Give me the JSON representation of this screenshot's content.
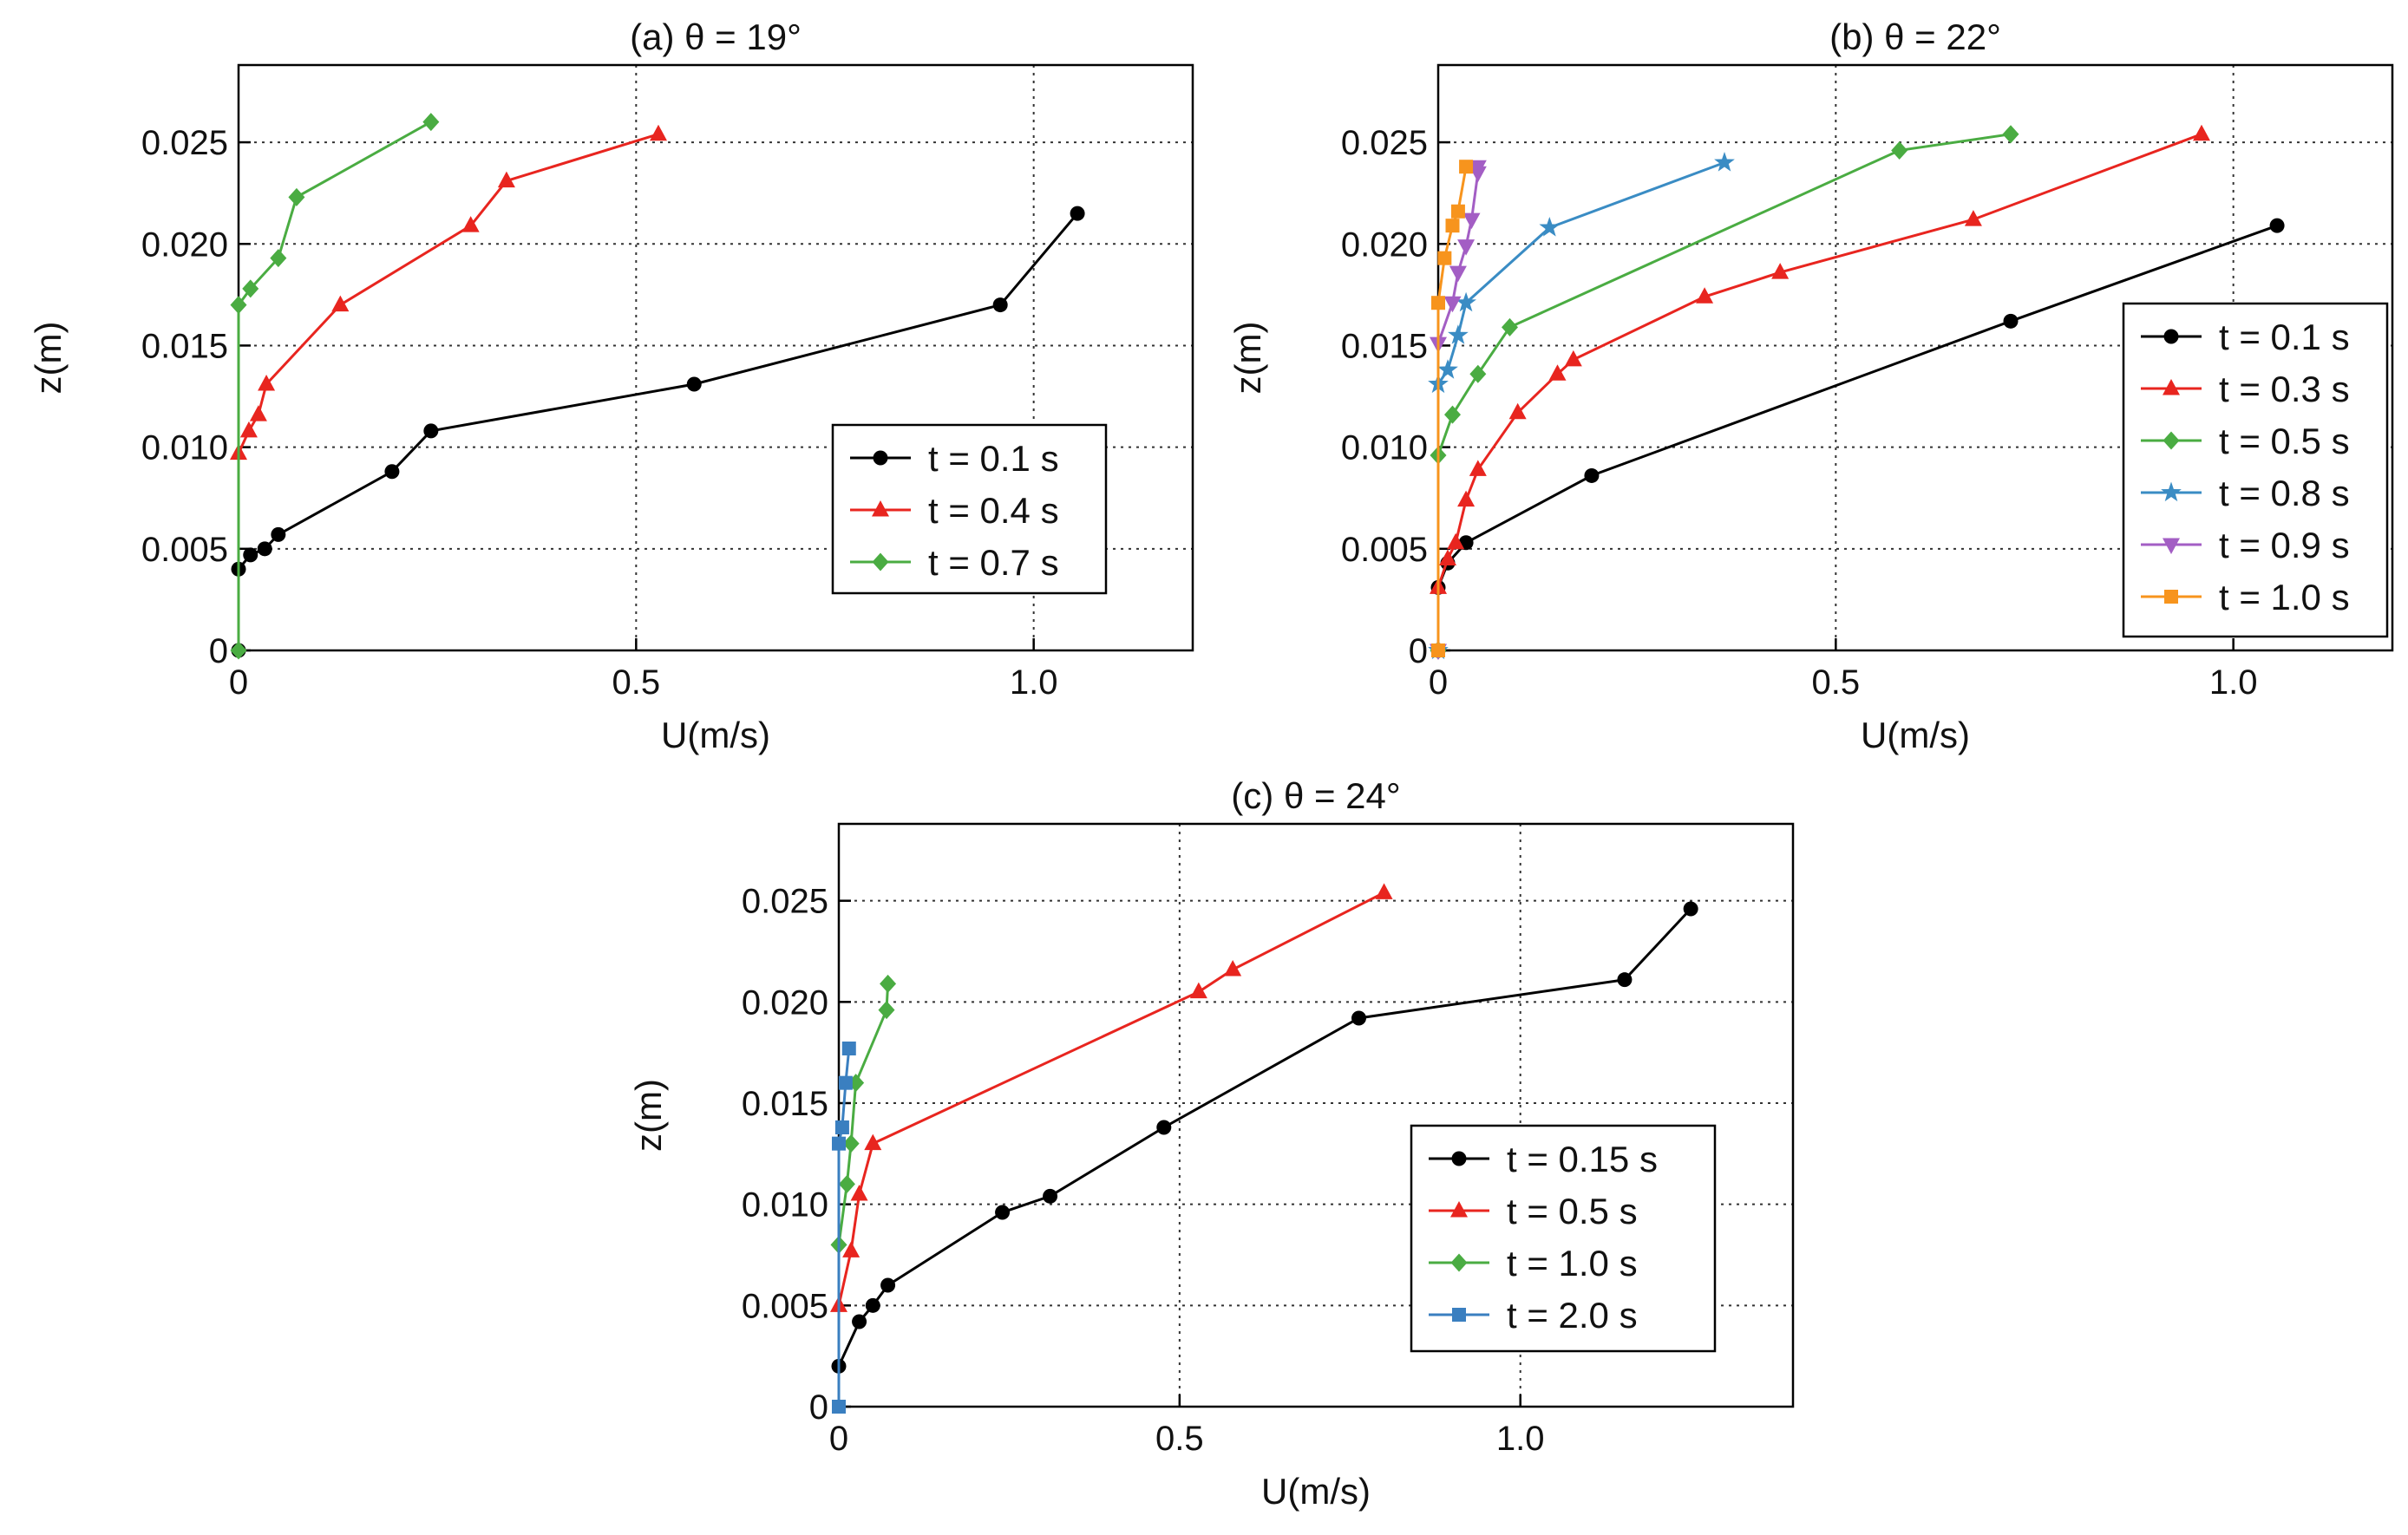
{
  "chart_data": [
    {
      "type": "line",
      "title": "(a) θ = 19°",
      "xlabel": "U(m/s)",
      "ylabel": "z(m)",
      "xlim": [
        0,
        1.2
      ],
      "ylim": [
        0,
        0.0288
      ],
      "grid": true,
      "legend_position": "center-right",
      "xticks": [
        0,
        0.5,
        1.0
      ],
      "xtick_labels": [
        "0",
        "0.5",
        "1.0"
      ],
      "yticks": [
        0,
        0.005,
        0.01,
        0.015,
        0.02,
        0.025
      ],
      "ytick_labels": [
        "0",
        "0.005",
        "0.010",
        "0.015",
        "0.020",
        "0.025"
      ],
      "series": [
        {
          "name": "t = 0.1 s",
          "color": "#000000",
          "marker": "circle",
          "x": [
            0,
            0.0,
            0.015,
            0.033,
            0.05,
            0.193,
            0.242,
            0.573,
            0.958,
            1.055
          ],
          "y": [
            0,
            0.004,
            0.0047,
            0.005,
            0.0057,
            0.0088,
            0.0108,
            0.0131,
            0.017,
            0.0215
          ]
        },
        {
          "name": "t = 0.4 s",
          "color": "#e8251f",
          "marker": "triangle",
          "x": [
            0.0,
            0.013,
            0.025,
            0.035,
            0.128,
            0.292,
            0.337,
            0.528
          ],
          "y": [
            0.0097,
            0.0108,
            0.0116,
            0.0131,
            0.017,
            0.0209,
            0.0231,
            0.0254
          ]
        },
        {
          "name": "t = 0.7 s",
          "color": "#4aac42",
          "marker": "diamond",
          "x": [
            0,
            0.0,
            0.015,
            0.05,
            0.073,
            0.242
          ],
          "y": [
            0,
            0.017,
            0.0178,
            0.0193,
            0.0223,
            0.026
          ]
        }
      ]
    },
    {
      "type": "line",
      "title": "(b) θ = 22°",
      "xlabel": "U(m/s)",
      "ylabel": "z(m)",
      "xlim": [
        0,
        1.2
      ],
      "ylim": [
        0,
        0.0288
      ],
      "grid": true,
      "legend_position": "right",
      "xticks": [
        0,
        0.5,
        1.0
      ],
      "xtick_labels": [
        "0",
        "0.5",
        "1.0"
      ],
      "yticks": [
        0,
        0.005,
        0.01,
        0.015,
        0.02,
        0.025
      ],
      "ytick_labels": [
        "0",
        "0.005",
        "0.010",
        "0.015",
        "0.020",
        "0.025"
      ],
      "series": [
        {
          "name": "t = 0.1 s",
          "color": "#000000",
          "marker": "circle",
          "x": [
            0,
            0.0,
            0.012,
            0.035,
            0.193,
            0.72,
            1.055
          ],
          "y": [
            0,
            0.0031,
            0.0043,
            0.0053,
            0.0086,
            0.0162,
            0.0209
          ]
        },
        {
          "name": "t = 0.3 s",
          "color": "#e8251f",
          "marker": "triangle",
          "x": [
            0.0,
            0.012,
            0.022,
            0.035,
            0.05,
            0.1,
            0.15,
            0.17,
            0.335,
            0.43,
            0.673,
            0.96
          ],
          "y": [
            0.0031,
            0.0045,
            0.0053,
            0.0074,
            0.0089,
            0.0117,
            0.0136,
            0.0143,
            0.0174,
            0.0186,
            0.0212,
            0.0254
          ]
        },
        {
          "name": "t = 0.5 s",
          "color": "#4aac42",
          "marker": "diamond",
          "x": [
            0,
            0.0,
            0.018,
            0.05,
            0.09,
            0.58,
            0.72
          ],
          "y": [
            0,
            0.0096,
            0.0116,
            0.0136,
            0.0159,
            0.0246,
            0.0254
          ]
        },
        {
          "name": "t = 0.8 s",
          "color": "#3a8cc4",
          "marker": "star",
          "x": [
            0,
            0.0,
            0.012,
            0.025,
            0.035,
            0.14,
            0.36
          ],
          "y": [
            0,
            0.0131,
            0.0138,
            0.0155,
            0.0171,
            0.0208,
            0.024
          ]
        },
        {
          "name": "t = 0.9 s",
          "color": "#a35ec4",
          "marker": "triangle-down",
          "x": [
            0,
            0.0,
            0.018,
            0.025,
            0.035,
            0.042,
            0.05,
            0.05
          ],
          "y": [
            0,
            0.0151,
            0.0171,
            0.0186,
            0.0199,
            0.0212,
            0.0235,
            0.0238
          ]
        },
        {
          "name": "t = 1.0 s",
          "color": "#f7941d",
          "marker": "square",
          "x": [
            0,
            0.0,
            0.008,
            0.018,
            0.025,
            0.035
          ],
          "y": [
            0,
            0.0171,
            0.0193,
            0.0209,
            0.0216,
            0.0238
          ]
        }
      ]
    },
    {
      "type": "line",
      "title": "(c) θ = 24°",
      "xlabel": "U(m/s)",
      "ylabel": "z(m)",
      "xlim": [
        0,
        1.4
      ],
      "ylim": [
        0,
        0.0288
      ],
      "grid": true,
      "legend_position": "bottom-right",
      "xticks": [
        0,
        0.5,
        1.0
      ],
      "xtick_labels": [
        "0",
        "0.5",
        "1.0"
      ],
      "yticks": [
        0,
        0.005,
        0.01,
        0.015,
        0.02,
        0.025
      ],
      "ytick_labels": [
        "0",
        "0.005",
        "0.010",
        "0.015",
        "0.020",
        "0.025"
      ],
      "series": [
        {
          "name": "t = 0.15 s",
          "color": "#000000",
          "marker": "circle",
          "x": [
            0.0,
            0.03,
            0.05,
            0.072,
            0.24,
            0.31,
            0.477,
            0.763,
            1.153,
            1.25
          ],
          "y": [
            0.002,
            0.0042,
            0.005,
            0.006,
            0.0096,
            0.0104,
            0.0138,
            0.0192,
            0.0211,
            0.0246
          ]
        },
        {
          "name": "t = 0.5 s",
          "color": "#e8251f",
          "marker": "triangle",
          "x": [
            0.0,
            0.018,
            0.03,
            0.05,
            0.528,
            0.578,
            0.8
          ],
          "y": [
            0.005,
            0.0077,
            0.0105,
            0.013,
            0.0205,
            0.0216,
            0.0254
          ]
        },
        {
          "name": "t = 1.0 s",
          "color": "#4aac42",
          "marker": "diamond",
          "x": [
            0.0,
            0.012,
            0.018,
            0.025,
            0.07,
            0.072
          ],
          "y": [
            0.008,
            0.011,
            0.013,
            0.016,
            0.0196,
            0.0209
          ]
        },
        {
          "name": "t = 2.0 s",
          "color": "#3a7fc0",
          "marker": "square",
          "x": [
            0,
            0.0,
            0.005,
            0.01,
            0.015
          ],
          "y": [
            0,
            0.013,
            0.0138,
            0.016,
            0.0177
          ]
        }
      ]
    }
  ]
}
